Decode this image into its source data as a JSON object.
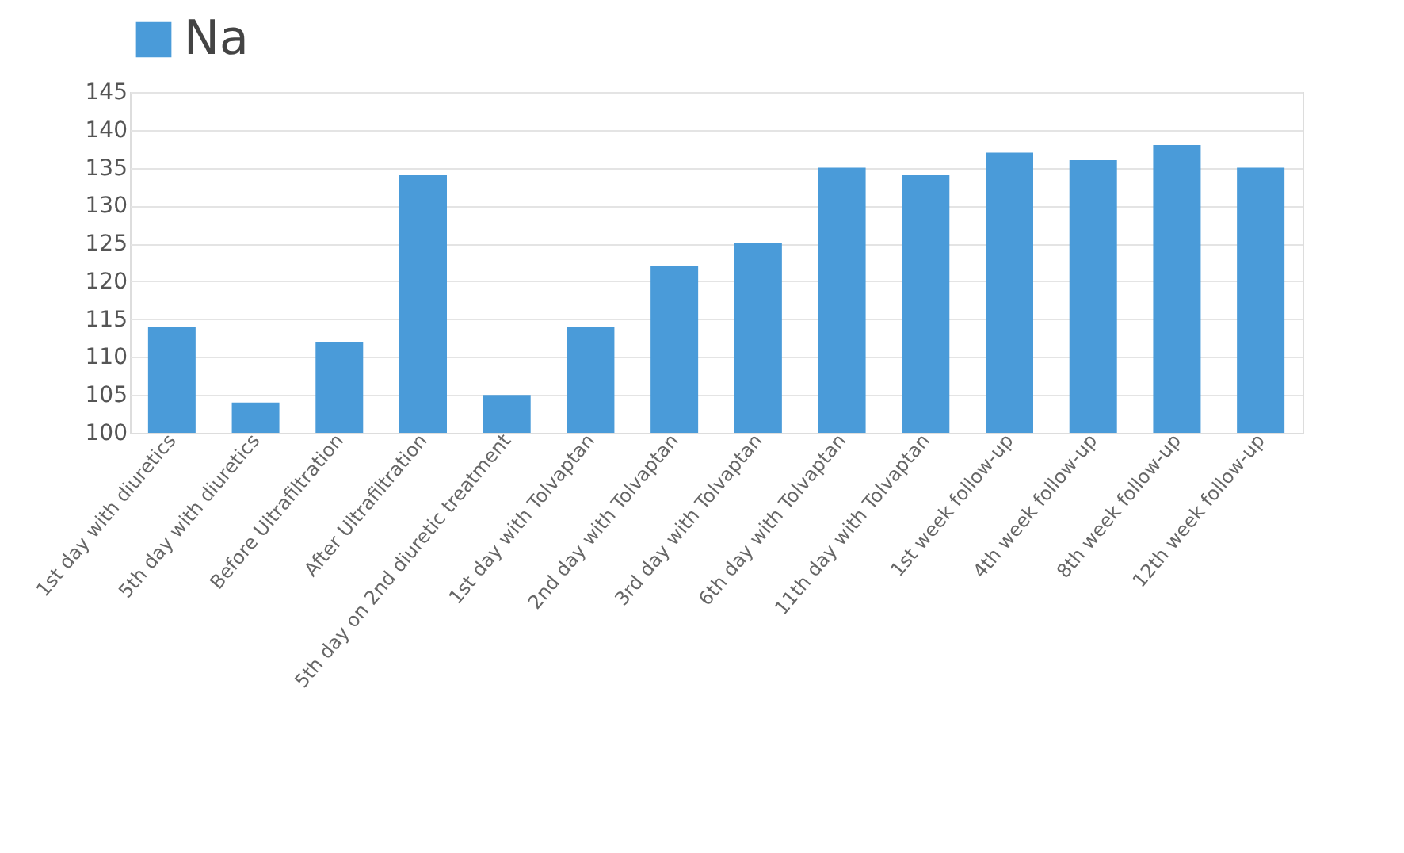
{
  "chart_data": {
    "type": "bar",
    "categories": [
      "1st day with diuretics",
      "5th day with diuretics",
      "Before Ultrafiltration",
      "After Ultrafiltration",
      "5th day on 2nd diuretic treatment",
      "1st day with Tolvaptan",
      "2nd day with Tolvaptan",
      "3rd day with Tolvaptan",
      "6th day with Tolvaptan",
      "11th day with Tolvaptan",
      "1st week follow-up",
      "4th week follow-up",
      "8th week follow-up",
      "12th week follow-up"
    ],
    "series": [
      {
        "name": "Na",
        "color": "#4a9bd9",
        "values": [
          114,
          104,
          112,
          134,
          105,
          114,
          122,
          125,
          135,
          134,
          137,
          136,
          138,
          135
        ]
      }
    ],
    "ylim": [
      100,
      145
    ],
    "yticks": [
      100,
      105,
      110,
      115,
      120,
      125,
      130,
      135,
      140,
      145
    ],
    "grid": "y",
    "legend": "top"
  }
}
